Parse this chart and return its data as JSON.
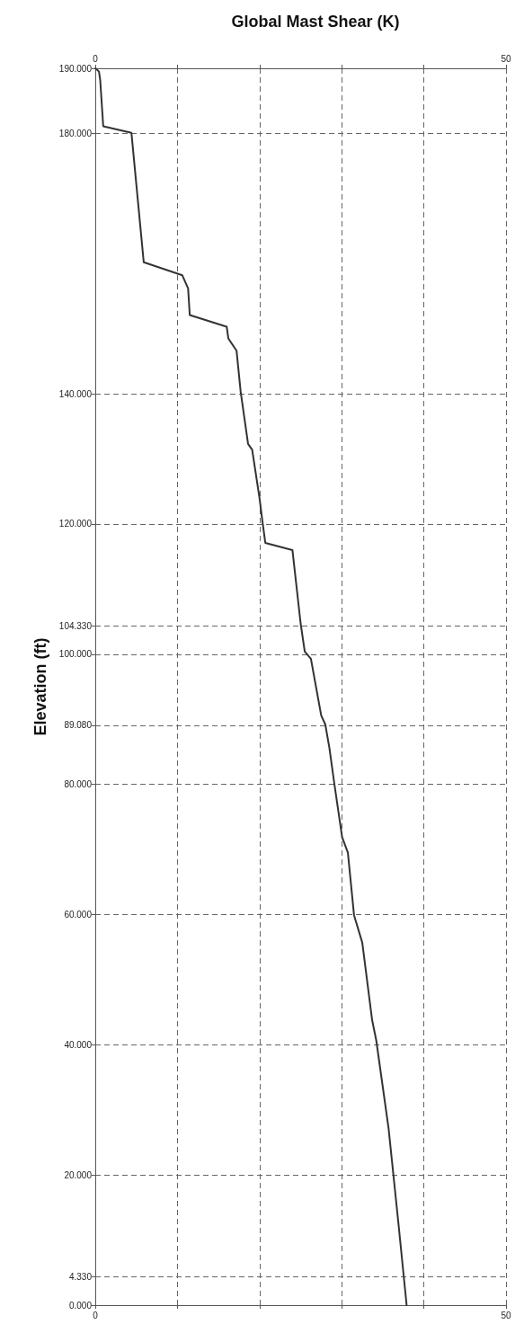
{
  "chart_data": {
    "type": "line",
    "title": "Global Mast Shear (K)",
    "ylabel": "Elevation (ft)",
    "series": [
      {
        "color": "#333333",
        "x": [
          0.03,
          0.45,
          0.6,
          0.97,
          4.4,
          5.9,
          10.6,
          11.3,
          11.5,
          16.0,
          16.2,
          17.2,
          17.7,
          18.6,
          19.1,
          20.0,
          20.35,
          20.7,
          24.0,
          25.0,
          25.5,
          26.25,
          27.5,
          28.0,
          28.5,
          29.1,
          30.05,
          30.75,
          31.5,
          32.5,
          33.7,
          34.2,
          35.7,
          36.9,
          37.9
        ],
        "values": [
          190,
          189.5,
          188.2,
          181.1,
          180.1,
          160.2,
          158.2,
          156.2,
          152.1,
          150.3,
          148.5,
          146.6,
          140.3,
          132.3,
          131.4,
          123.9,
          120.4,
          117.1,
          116.0,
          104.7,
          100.4,
          99.3,
          90.6,
          89.2,
          85.6,
          80.1,
          71.9,
          69.5,
          59.9,
          55.7,
          43.8,
          40.7,
          27.2,
          12.6,
          0
        ]
      }
    ],
    "xlim": [
      0,
      50
    ],
    "xticks": [
      0,
      {
        "value": 10,
        "label": null
      },
      {
        "value": 20,
        "label": null
      },
      {
        "value": 30,
        "label": null
      },
      {
        "value": 40,
        "label": null
      },
      50
    ],
    "x2lim": [
      0,
      50
    ],
    "x2ticks": [
      0,
      {
        "value": 10,
        "label": null
      },
      {
        "value": 20,
        "label": null
      },
      {
        "value": 30,
        "label": null
      },
      {
        "value": 40,
        "label": null
      },
      50
    ],
    "ylim": [
      0,
      190
    ],
    "yticks": [
      {
        "value": 0,
        "label": "0.000"
      },
      {
        "value": 4.33,
        "label": "4.330"
      },
      {
        "value": 20,
        "label": "20.000"
      },
      {
        "value": 40,
        "label": "40.000"
      },
      {
        "value": 60,
        "label": "60.000"
      },
      {
        "value": 80,
        "label": "80.000"
      },
      {
        "value": 89.08,
        "label": "89.080"
      },
      {
        "value": 100,
        "label": "100.000"
      },
      {
        "value": 104.33,
        "label": "104.330"
      },
      {
        "value": 120,
        "label": "120.000"
      },
      {
        "value": 140,
        "label": "140.000"
      },
      {
        "value": 180,
        "label": "180.000"
      },
      {
        "value": 190,
        "label": "190.000"
      }
    ],
    "grid": true,
    "marker": "none",
    "line_style": "solid"
  }
}
